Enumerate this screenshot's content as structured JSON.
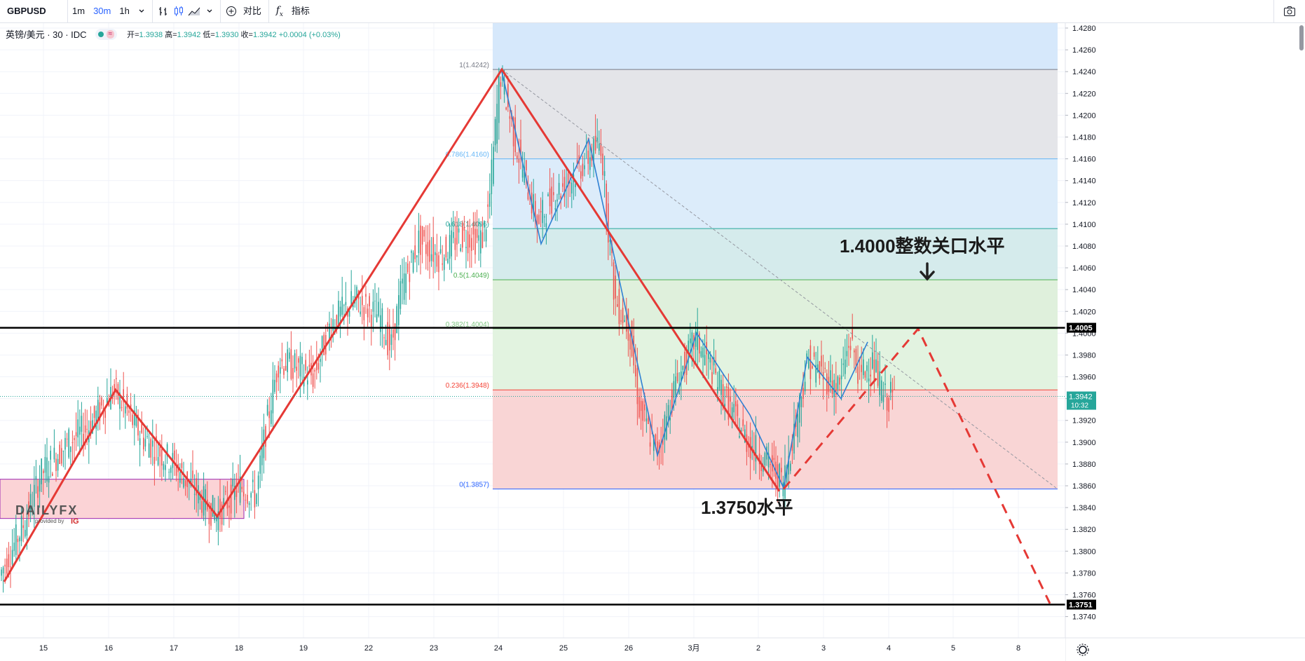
{
  "toolbar": {
    "symbol": "GBPUSD",
    "intervals": [
      "1m",
      "30m",
      "1h"
    ],
    "active_interval": "30m",
    "compare_label": "对比",
    "indicators_label": "指标"
  },
  "legend": {
    "title": "英镑/美元 · 30 · IDC",
    "open_label": "开=",
    "open": "1.3938",
    "high_label": "高=",
    "high": "1.3942",
    "low_label": "低=",
    "low": "1.3930",
    "close_label": "收=",
    "close": "1.3942",
    "change": "+0.0004 (+0.03%)"
  },
  "annotations": {
    "upper": "1.4000整数关口水平",
    "lower": "1.3750水平",
    "watermark_brand": "DAILYFX",
    "watermark_sub": "provided by",
    "watermark_ig": "IG"
  },
  "price_badges": {
    "upper_line": "1.4005",
    "current_price": "1.3942",
    "countdown": "10:32",
    "lower_line": "1.3751"
  },
  "colors": {
    "up": "#26a69a",
    "down": "#ef5350",
    "zigzag_red": "#e53935",
    "zigzag_blue": "#2f80d3"
  },
  "chart_data": {
    "type": "candlestick",
    "ylim": [
      1.373,
      1.4285
    ],
    "yticks": [
      "1.4280",
      "1.4260",
      "1.4240",
      "1.4220",
      "1.4200",
      "1.4180",
      "1.4160",
      "1.4140",
      "1.4120",
      "1.4100",
      "1.4080",
      "1.4060",
      "1.4040",
      "1.4020",
      "1.4000",
      "1.3980",
      "1.3960",
      "1.3940",
      "1.3920",
      "1.3900",
      "1.3880",
      "1.3860",
      "1.3840",
      "1.3820",
      "1.3800",
      "1.3780",
      "1.3760",
      "1.3740"
    ],
    "xticks": [
      "15",
      "16",
      "17",
      "18",
      "19",
      "22",
      "23",
      "24",
      "25",
      "26",
      "3月",
      "2",
      "3",
      "4",
      "5",
      "8"
    ],
    "fibonacci": [
      {
        "label": "1(1.4242)",
        "level": 1.4242
      },
      {
        "label": "0.786(1.4160)",
        "level": 1.416
      },
      {
        "label": "0.618(1.4096)",
        "level": 1.4096
      },
      {
        "label": "0.5(1.4049)",
        "level": 1.4049
      },
      {
        "label": "0.382(1.4004)",
        "level": 1.4004
      },
      {
        "label": "0.236(1.3948)",
        "level": 1.3948
      },
      {
        "label": "0(1.3857)",
        "level": 1.3857
      }
    ],
    "horizontal_lines": [
      1.4005,
      1.3751
    ],
    "current_price": 1.3942,
    "red_zigzag": [
      [
        "15-",
        1.3772
      ],
      [
        "16",
        1.3948
      ],
      [
        "17.6",
        1.3832
      ],
      [
        "24",
        1.4242
      ],
      [
        "2.3",
        1.3855
      ]
    ],
    "red_dashed_projection": [
      [
        "2.4",
        1.3857
      ],
      [
        "4.4",
        1.4005
      ],
      [
        "8.5",
        1.3752
      ]
    ],
    "blue_zigzag": [
      [
        "24",
        1.424
      ],
      [
        "24.6",
        1.4082
      ],
      [
        "25.4",
        1.4178
      ],
      [
        "26.4",
        1.3888
      ],
      [
        "3月.1",
        1.4
      ],
      [
        "2.3",
        1.386
      ],
      [
        "2.7",
        1.3978
      ],
      [
        "3.3",
        1.394
      ],
      [
        "3.6",
        1.3992
      ]
    ],
    "rectangle": {
      "from": "15-",
      "to": "18",
      "top": 1.3866,
      "bottom": 1.383
    },
    "trendline": [
      [
        "24",
        1.4242
      ],
      [
        "8.5",
        1.3857
      ]
    ]
  }
}
